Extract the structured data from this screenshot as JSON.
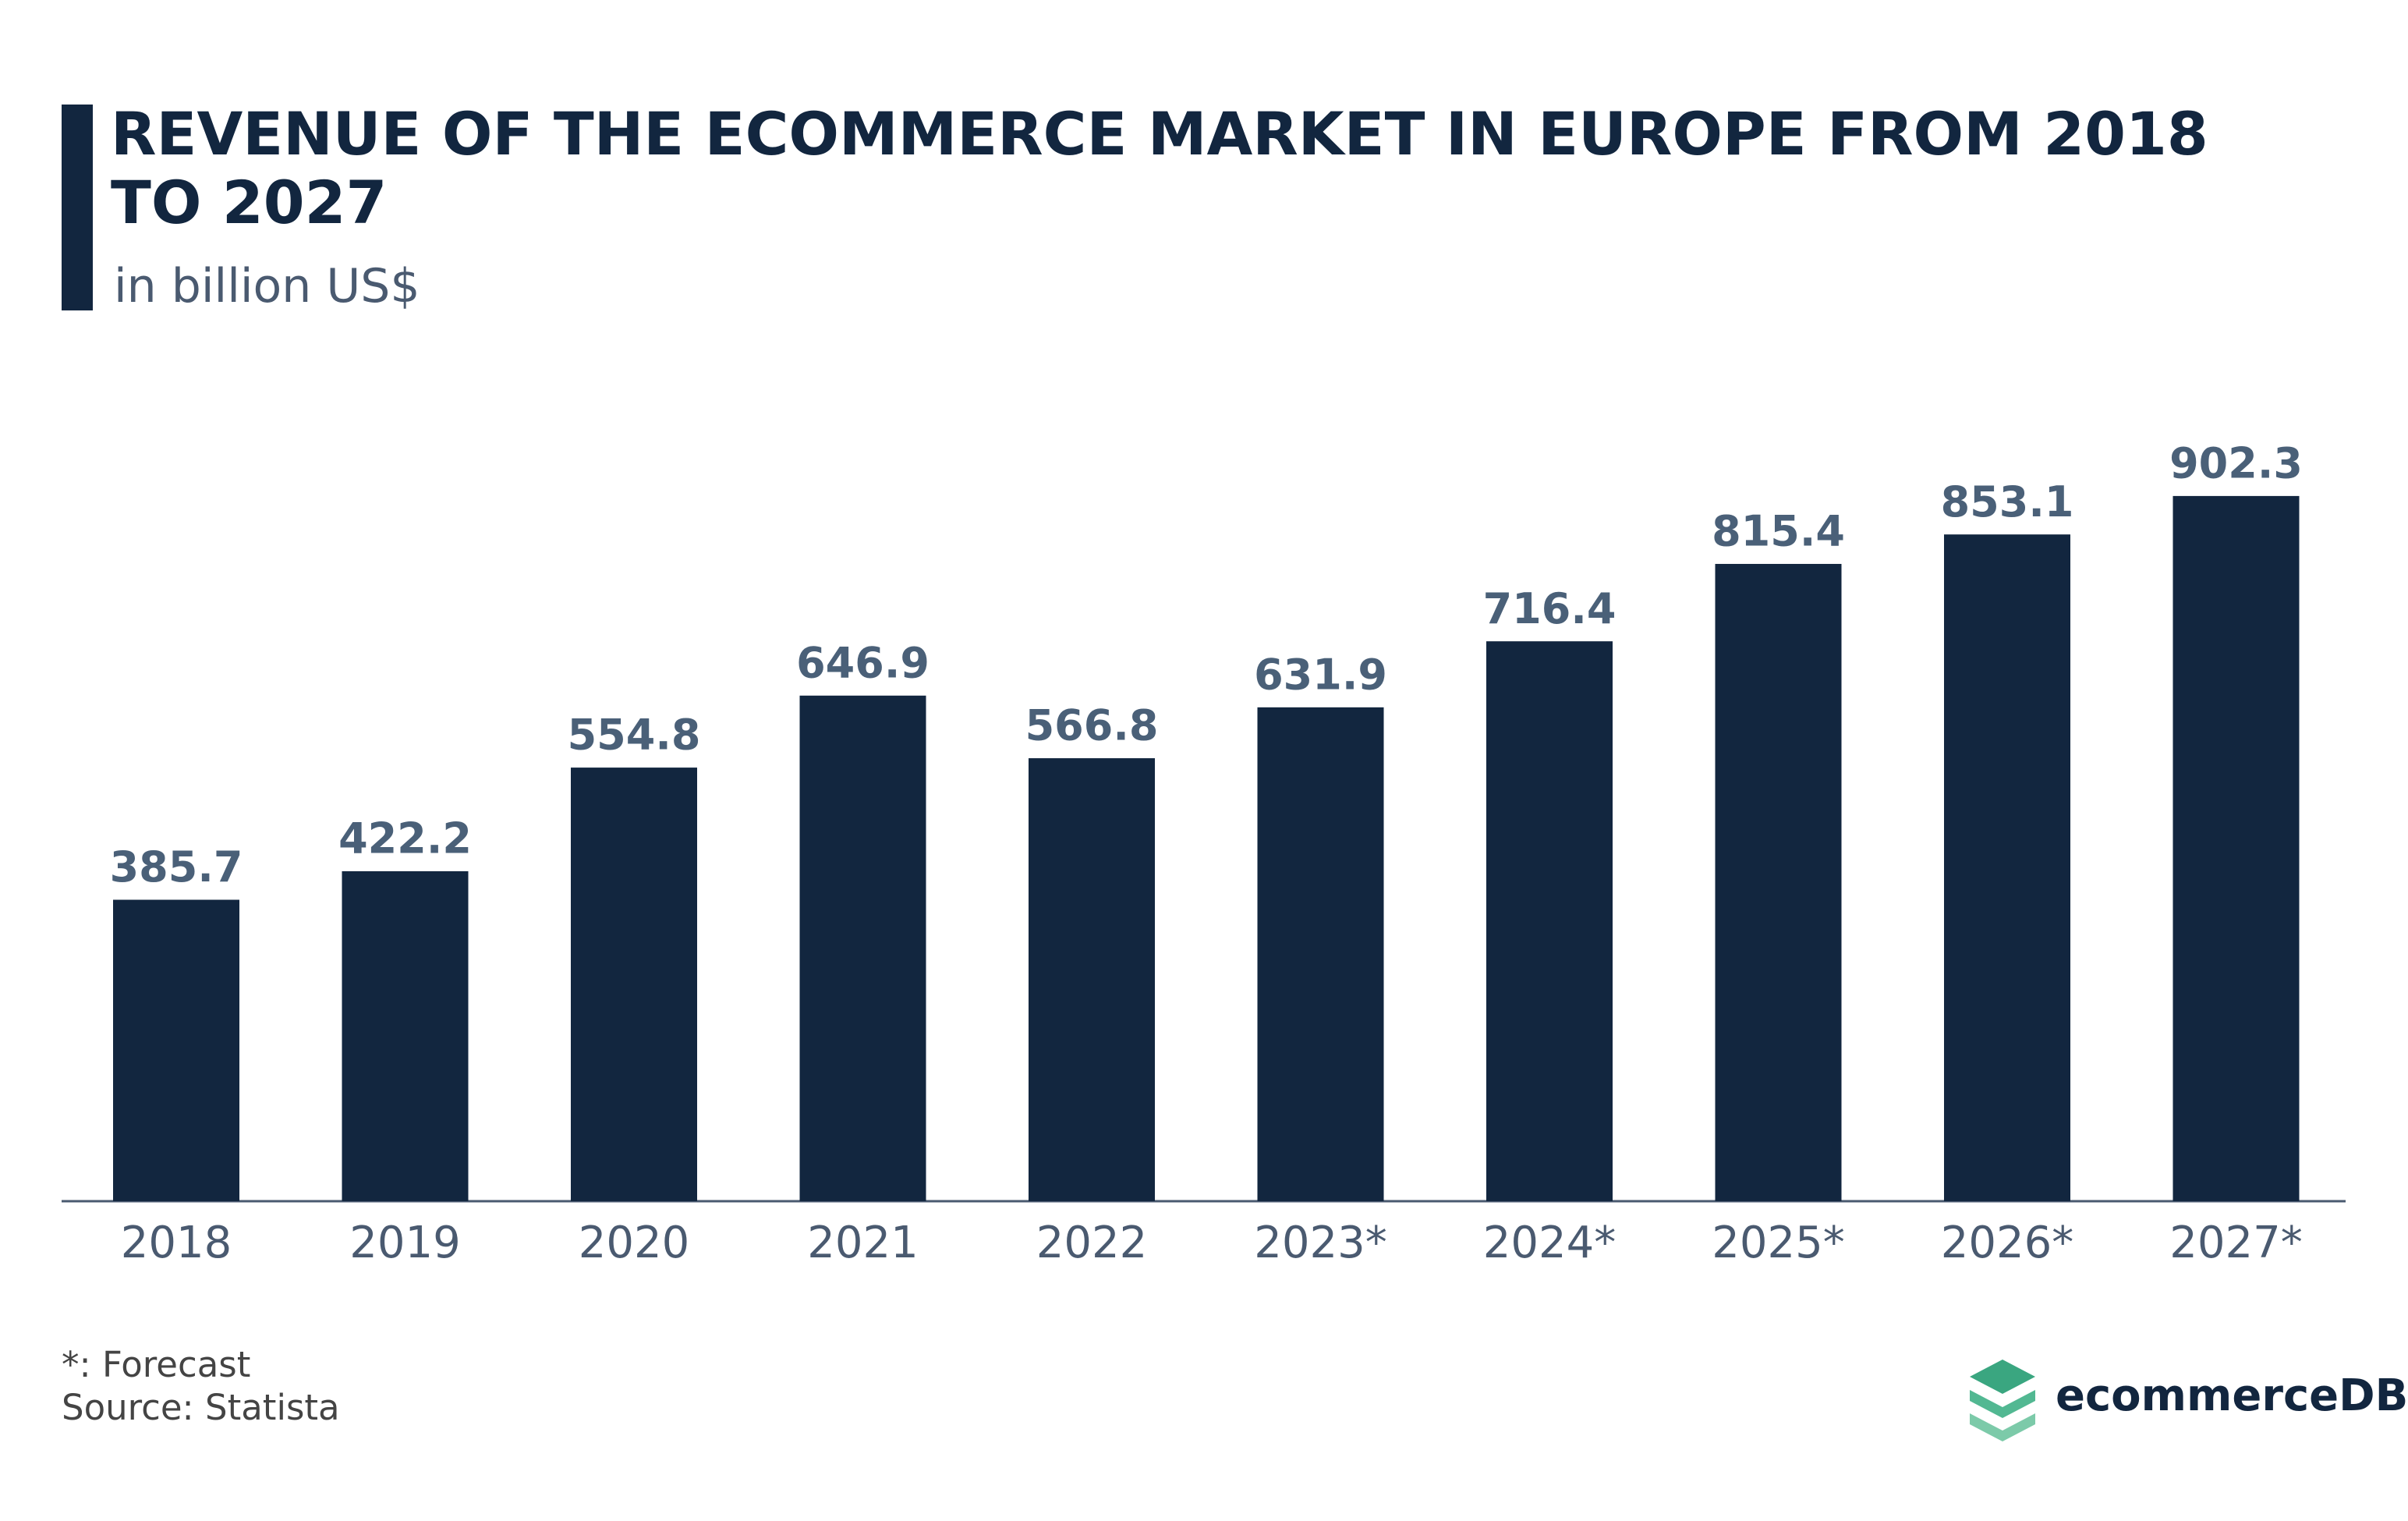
{
  "chart_data": {
    "type": "bar",
    "title": "REVENUE OF THE ECOMMERCE MARKET IN EUROPE FROM 2018 TO 2027",
    "subtitle": "in billion US$",
    "categories": [
      "2018",
      "2019",
      "2020",
      "2021",
      "2022",
      "2023*",
      "2024*",
      "2025*",
      "2026*",
      "2027*"
    ],
    "values": [
      385.7,
      422.2,
      554.8,
      646.9,
      566.8,
      631.9,
      716.4,
      815.4,
      853.1,
      902.3
    ],
    "color": "#12263f",
    "ylim": [
      0,
      1000
    ],
    "footnote": "*: Forecast",
    "source": "Source: Statista",
    "logo": "ecommerceDB"
  }
}
